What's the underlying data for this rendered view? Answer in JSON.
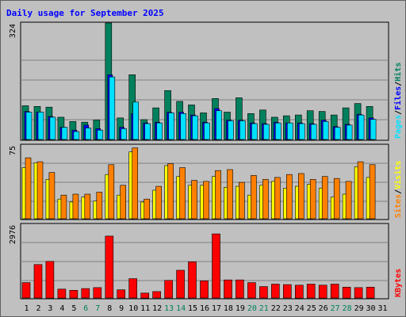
{
  "chart_data": {
    "type": "bar",
    "title": "Daily usage for September 2025",
    "categories": [
      "1",
      "2",
      "3",
      "4",
      "5",
      "6",
      "7",
      "8",
      "9",
      "10",
      "11",
      "12",
      "13",
      "14",
      "15",
      "16",
      "17",
      "18",
      "19",
      "20",
      "21",
      "22",
      "23",
      "24",
      "25",
      "26",
      "27",
      "28",
      "29",
      "30",
      "31"
    ],
    "weekend_days": [
      "6",
      "7",
      "13",
      "14",
      "20",
      "21",
      "27",
      "28"
    ],
    "colors": {
      "hits": "#00805c",
      "files": "#0000ff",
      "pages": "#00e0ff",
      "visits": "#ffff00",
      "sites": "#ff8000",
      "kbytes": "#ff0000",
      "weekday_label": "#000000",
      "weekend_label": "#00805c",
      "title": "#0000ff"
    },
    "panels": [
      {
        "name": "hits_files_pages",
        "ylim": [
          0,
          324
        ],
        "ymax_label": "324",
        "legend": [
          {
            "text": "Pages",
            "color": "#00e0ff"
          },
          {
            "text": "/",
            "color": "#000000"
          },
          {
            "text": "Files",
            "color": "#0000ff"
          },
          {
            "text": "/",
            "color": "#000000"
          },
          {
            "text": "Hits",
            "color": "#00805c"
          }
        ],
        "series": [
          {
            "name": "Hits",
            "color": "#00805c",
            "values": [
              94,
              92,
              90,
              62,
              50,
              48,
              54,
              324,
              60,
              180,
              55,
              88,
              136,
              106,
              96,
              74,
              114,
              76,
              116,
              72,
              82,
              62,
              66,
              68,
              80,
              78,
              68,
              88,
              100,
              92,
              0
            ]
          },
          {
            "name": "Files",
            "color": "#0000ff",
            "values": [
              78,
              76,
              64,
              34,
              26,
              40,
              30,
              180,
              34,
              72,
              46,
              48,
              76,
              76,
              68,
              48,
              86,
              54,
              54,
              46,
              44,
              48,
              46,
              46,
              44,
              54,
              36,
              42,
              70,
              60,
              0
            ]
          },
          {
            "name": "Pages",
            "color": "#00e0ff",
            "values": [
              76,
              76,
              62,
              34,
              22,
              32,
              26,
              174,
              30,
              104,
              44,
              46,
              74,
              72,
              66,
              46,
              80,
              52,
              52,
              44,
              42,
              46,
              46,
              44,
              42,
              50,
              34,
              40,
              68,
              56,
              0
            ]
          }
        ]
      },
      {
        "name": "visits_sites",
        "ylim": [
          0,
          75
        ],
        "ymax_label": "75",
        "legend": [
          {
            "text": "Sites",
            "color": "#ff8000"
          },
          {
            "text": "/",
            "color": "#000000"
          },
          {
            "text": "Visits",
            "color": "#ffff00"
          }
        ],
        "series": [
          {
            "name": "Visits",
            "color": "#ffff00",
            "values": [
              52,
              57,
              40,
              20,
              17,
              22,
              18,
              45,
              24,
              68,
              17,
              29,
              54,
              43,
              34,
              34,
              43,
              32,
              33,
              24,
              34,
              38,
              31,
              33,
              35,
              31,
              22,
              25,
              53,
              42,
              0
            ]
          },
          {
            "name": "Sites",
            "color": "#ff8000",
            "values": [
              62,
              58,
              47,
              24,
              25,
              25,
              27,
              55,
              34,
              72,
              20,
              33,
              56,
              52,
              39,
              38,
              49,
              50,
              37,
              44,
              40,
              42,
              45,
              46,
              40,
              43,
              41,
              38,
              58,
              55,
              0
            ]
          }
        ]
      },
      {
        "name": "kbytes",
        "ylim": [
          0,
          2976
        ],
        "ymax_label": "2976",
        "legend": [
          {
            "text": "KBytes",
            "color": "#ff0000"
          }
        ],
        "series": [
          {
            "name": "KBytes",
            "color": "#ff0000",
            "values": [
              620,
              1350,
              1480,
              360,
              310,
              380,
              420,
              2500,
              330,
              780,
              200,
              260,
              710,
              1120,
              1460,
              690,
              2590,
              730,
              730,
              620,
              460,
              560,
              540,
              520,
              560,
              520,
              560,
              440,
              420,
              440,
              0
            ]
          }
        ]
      }
    ]
  }
}
